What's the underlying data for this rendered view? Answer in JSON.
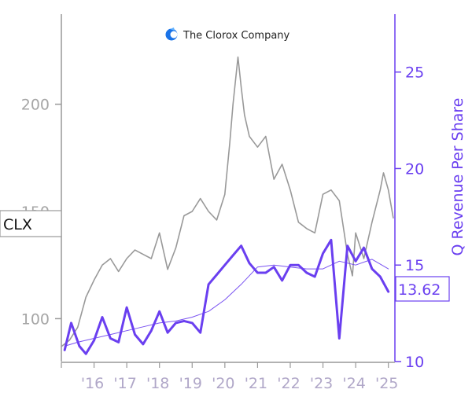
{
  "brand": {
    "name": "The Clorox Company",
    "logo_icon": "clorox-logo-icon",
    "logo_color": "#1a73e8"
  },
  "colors": {
    "price": "#999999",
    "revenue": "#6a3ff0",
    "revenue_avg": "#6a3ff0",
    "left_axis": "#a6a6a6",
    "right_axis": "#6a3ff0",
    "x_axis_text": "#b0a7c8"
  },
  "chart_data": {
    "type": "line",
    "title": "",
    "ticker_label": "CLX",
    "last_value_label": "13.62",
    "left_axis": {
      "ticks": [
        100,
        150,
        200
      ],
      "range": [
        80,
        242
      ]
    },
    "right_axis": {
      "label": "Q Revenue Per Share",
      "ticks": [
        10,
        15,
        20,
        25
      ],
      "range": [
        10,
        28
      ]
    },
    "x_axis": {
      "ticks": [
        "'16",
        "'17",
        "'18",
        "'19",
        "'20",
        "'21",
        "'22",
        "'23",
        "'24",
        "'25"
      ],
      "range": [
        2015.0,
        2025.2
      ]
    },
    "series": [
      {
        "name": "",
        "axis": "left",
        "style": "price",
        "x": [
          2015.0,
          2015.25,
          2015.5,
          2015.75,
          2016.0,
          2016.25,
          2016.5,
          2016.75,
          2017.0,
          2017.25,
          2017.5,
          2017.75,
          2018.0,
          2018.25,
          2018.5,
          2018.75,
          2019.0,
          2019.25,
          2019.5,
          2019.75,
          2020.0,
          2020.15,
          2020.25,
          2020.4,
          2020.5,
          2020.6,
          2020.75,
          2021.0,
          2021.25,
          2021.5,
          2021.75,
          2022.0,
          2022.25,
          2022.5,
          2022.75,
          2023.0,
          2023.25,
          2023.5,
          2023.6,
          2023.75,
          2023.9,
          2024.0,
          2024.25,
          2024.5,
          2024.75,
          2024.85,
          2025.0,
          2025.15
        ],
        "values": [
          87,
          90,
          96,
          110,
          118,
          125,
          128,
          122,
          128,
          132,
          130,
          128,
          140,
          123,
          133,
          148,
          150,
          156,
          150,
          146,
          158,
          182,
          200,
          222,
          208,
          195,
          185,
          180,
          185,
          165,
          172,
          160,
          145,
          142,
          140,
          158,
          160,
          155,
          145,
          130,
          120,
          140,
          128,
          145,
          160,
          168,
          160,
          147
        ]
      },
      {
        "name": "",
        "axis": "right",
        "style": "revenue",
        "x": [
          2015.1,
          2015.3,
          2015.55,
          2015.75,
          2016.0,
          2016.25,
          2016.5,
          2016.75,
          2017.0,
          2017.25,
          2017.5,
          2017.75,
          2018.0,
          2018.25,
          2018.5,
          2018.75,
          2019.0,
          2019.25,
          2019.5,
          2019.75,
          2020.0,
          2020.25,
          2020.5,
          2020.75,
          2021.0,
          2021.25,
          2021.5,
          2021.75,
          2022.0,
          2022.25,
          2022.5,
          2022.75,
          2023.0,
          2023.25,
          2023.5,
          2023.75,
          2024.0,
          2024.25,
          2024.5,
          2024.75,
          2025.0
        ],
        "values": [
          10.6,
          12.0,
          10.8,
          10.4,
          11.1,
          12.3,
          11.2,
          11.0,
          12.8,
          11.4,
          10.9,
          11.6,
          12.6,
          11.5,
          12.0,
          12.1,
          12.0,
          11.5,
          14.0,
          14.5,
          15.0,
          15.5,
          16.0,
          15.1,
          14.6,
          14.6,
          14.9,
          14.2,
          15.0,
          15.0,
          14.6,
          14.4,
          15.6,
          16.3,
          11.2,
          16.0,
          15.2,
          15.9,
          14.8,
          14.4,
          13.62
        ]
      },
      {
        "name": "",
        "axis": "right",
        "style": "average",
        "x": [
          2015.1,
          2015.5,
          2016.0,
          2016.5,
          2017.0,
          2017.5,
          2018.0,
          2018.5,
          2019.0,
          2019.5,
          2020.0,
          2020.5,
          2021.0,
          2021.5,
          2022.0,
          2022.5,
          2023.0,
          2023.5,
          2024.0,
          2024.5,
          2025.0
        ],
        "values": [
          10.8,
          11.0,
          11.2,
          11.4,
          11.6,
          11.8,
          12.0,
          12.1,
          12.3,
          12.6,
          13.2,
          14.0,
          14.9,
          15.0,
          14.9,
          14.8,
          14.8,
          15.2,
          15.0,
          15.3,
          14.8
        ]
      }
    ]
  }
}
